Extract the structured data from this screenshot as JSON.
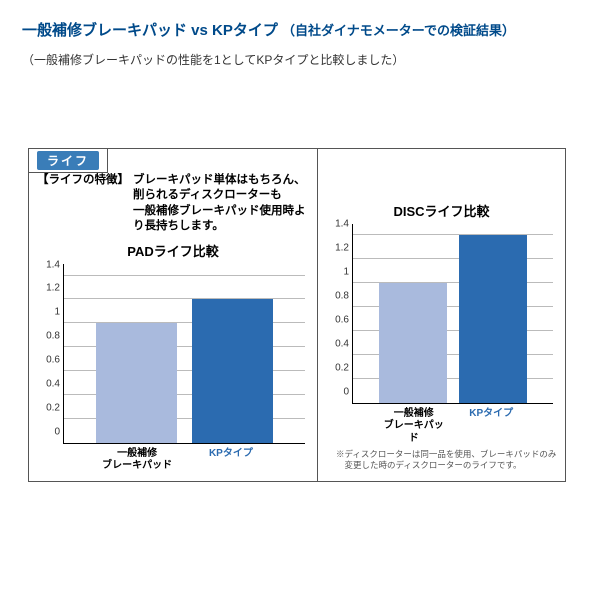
{
  "header": {
    "title_main": "一般補修ブレーキパッド vs KPタイプ",
    "title_sub": "（自社ダイナモメーターでの検証結果）",
    "subtext": "（一般補修ブレーキパッドの性能を1としてKPタイプと比較しました）",
    "title_color": "#004a8a"
  },
  "life_badge": {
    "label": "ライフ",
    "bg_color": "#3a7db8",
    "text_color": "#ffffff"
  },
  "feature": {
    "label": "【ライフの特徴】",
    "text_line1": "ブレーキパッド単体はもちろん、削られるディスクローターも",
    "text_line2": "一般補修ブレーキパッド使用時より長持ちします。"
  },
  "axes": {
    "ymax": 1.5,
    "ticks": [
      0,
      0.2,
      0.4,
      0.6,
      0.8,
      1,
      1.2,
      1.4
    ],
    "tick_fontsize": 10,
    "grid_color": "#bbbbbb",
    "axis_color": "#000000"
  },
  "chart_left": {
    "title": "PADライフ比較",
    "bars": [
      {
        "label_line1": "一般補修",
        "label_line2": "ブレーキパッド",
        "value": 1.0,
        "color": "#a9badd",
        "label_color": "#000000"
      },
      {
        "label_line1": "KPタイプ",
        "label_line2": "",
        "value": 1.2,
        "color": "#2b6bb0",
        "label_color": "#2b6bb0"
      }
    ]
  },
  "chart_right": {
    "title": "DISCライフ比較",
    "bars": [
      {
        "label_line1": "一般補修",
        "label_line2": "ブレーキパッド",
        "value": 1.0,
        "color": "#a9badd",
        "label_color": "#000000"
      },
      {
        "label_line1": "KPタイプ",
        "label_line2": "",
        "value": 1.4,
        "color": "#2b6bb0",
        "label_color": "#2b6bb0"
      }
    ],
    "footnote_line1": "※ディスクローターは同一品を使用、ブレーキパッドのみ",
    "footnote_line2": "　変更した時のディスクローターのライフです。"
  }
}
